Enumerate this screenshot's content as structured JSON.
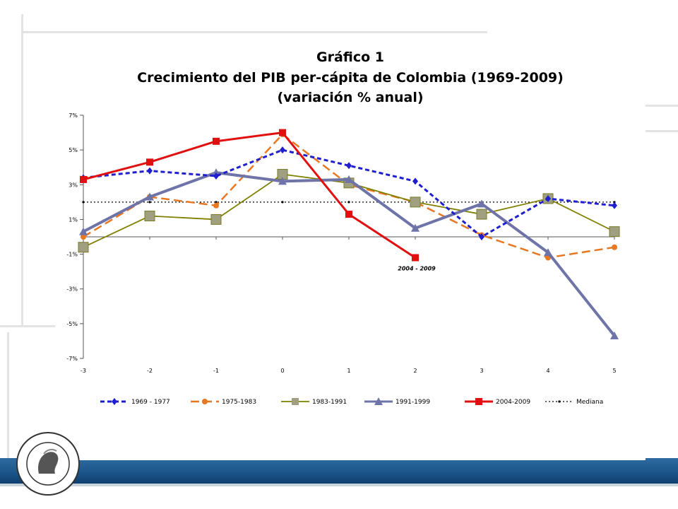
{
  "chart_data": {
    "type": "line",
    "title": "Gráfico 1",
    "subtitle": "Crecimiento del PIB per-cápita de Colombia  (1969-2009)",
    "subtitle2": "(variación % anual)",
    "xlabel": "",
    "ylabel": "",
    "x": [
      -3,
      -2,
      -1,
      0,
      1,
      2,
      3,
      4,
      5
    ],
    "xlim": [
      -3,
      5
    ],
    "ylim": [
      -7,
      7
    ],
    "y_ticks": [
      7,
      5,
      3,
      1,
      -1,
      -3,
      -5,
      -7
    ],
    "y_tick_labels": [
      "7%",
      "5%",
      "3%",
      "1%",
      "-1%",
      "-3%",
      "-5%",
      "-7%"
    ],
    "x_tick_labels": [
      "-3",
      "-2",
      "-1",
      "0",
      "1",
      "2",
      "3",
      "4",
      "5"
    ],
    "grid": false,
    "legend_position": "bottom",
    "annotation": "2004 - 2009",
    "series": [
      {
        "name": "1969 - 1977",
        "color": "#1f1fd0",
        "dash": "6,4",
        "marker": "diamond",
        "values": [
          3.4,
          3.8,
          3.5,
          5.0,
          4.1,
          3.2,
          0.0,
          2.2,
          1.8
        ]
      },
      {
        "name": "1975-1983",
        "color": "#e87722",
        "dash": "12,6",
        "marker": "circle",
        "values": [
          0.0,
          2.3,
          1.8,
          5.9,
          3.0,
          2.0,
          0.1,
          -1.2,
          -0.6
        ]
      },
      {
        "name": "1983-1991",
        "color": "#808000",
        "dash": "",
        "marker": "square",
        "values": [
          -0.6,
          1.2,
          1.0,
          3.6,
          3.1,
          2.0,
          1.3,
          2.2,
          0.3
        ]
      },
      {
        "name": "1991-1999",
        "color": "#6e73a8",
        "dash": "",
        "marker": "triangle",
        "values": [
          0.3,
          2.3,
          3.7,
          3.2,
          3.3,
          0.5,
          1.9,
          -0.9,
          -5.7
        ]
      },
      {
        "name": "2004-2009",
        "color": "#e01010",
        "dash": "",
        "marker": "square",
        "values": [
          3.3,
          4.3,
          5.5,
          6.0,
          1.3,
          -1.2,
          null,
          null,
          null
        ]
      },
      {
        "name": "Mediana",
        "color": "#000000",
        "dash": "2,3",
        "marker": "dot",
        "values": [
          2.0,
          2.0,
          2.0,
          2.0,
          2.0,
          2.0,
          2.0,
          2.0,
          2.0
        ]
      }
    ]
  }
}
